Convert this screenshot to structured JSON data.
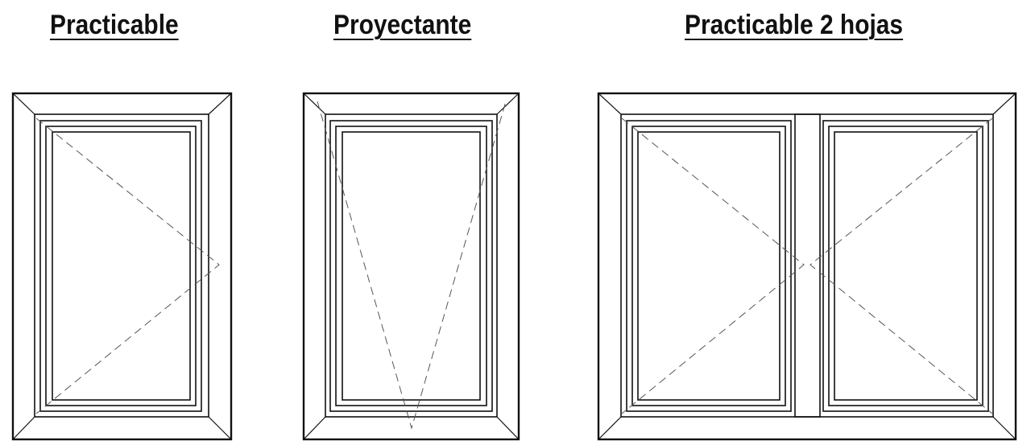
{
  "windows": [
    {
      "label": "Practicable",
      "type": "casement",
      "hinge": "left"
    },
    {
      "label": "Proyectante",
      "type": "top-hung"
    },
    {
      "label": "Practicable 2 hojas",
      "type": "double-casement"
    }
  ],
  "colors": {
    "line": "#111111",
    "opening_line": "#555555",
    "background": "#ffffff"
  }
}
